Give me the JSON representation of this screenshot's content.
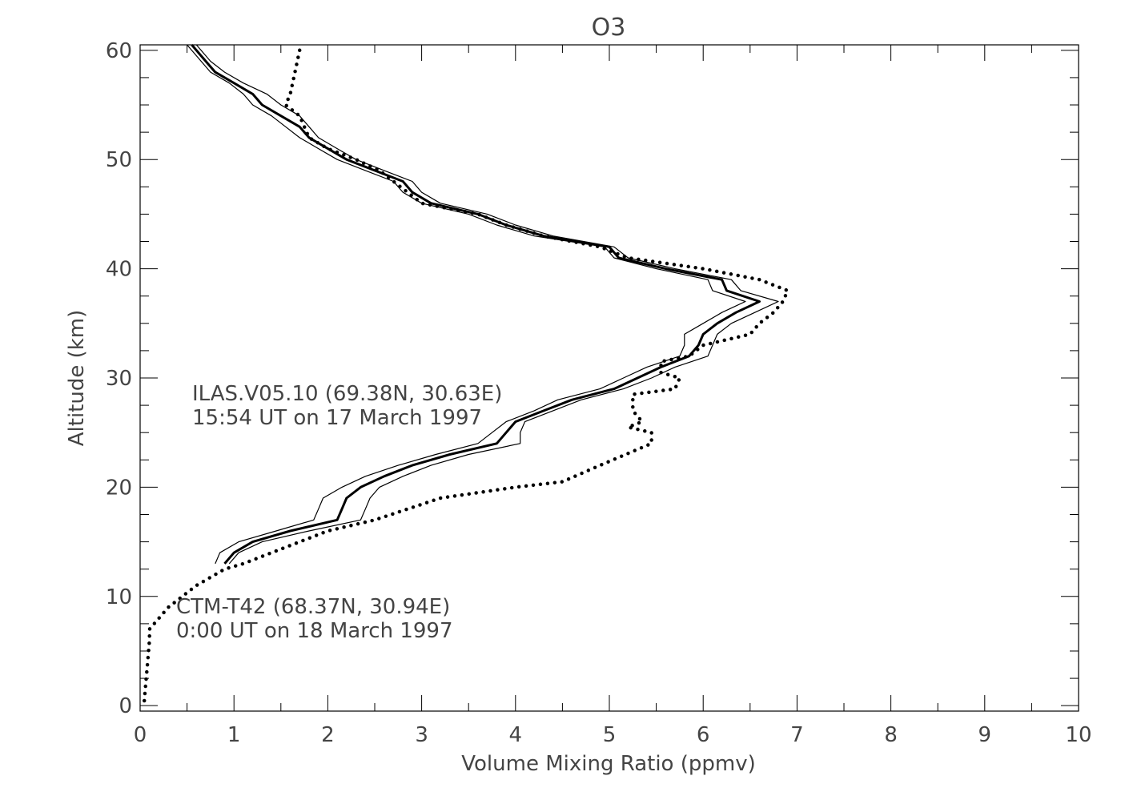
{
  "chart_data": {
    "type": "line",
    "title": "O3",
    "xlabel": "Volume Mixing Ratio (ppmv)",
    "ylabel": "Altitude (km)",
    "xlim": [
      0,
      10
    ],
    "ylim": [
      -0.5,
      60.5
    ],
    "xticks": [
      "0",
      "1",
      "2",
      "3",
      "4",
      "5",
      "6",
      "7",
      "8",
      "9",
      "10"
    ],
    "yticks": [
      "0",
      "10",
      "20",
      "30",
      "40",
      "50",
      "60"
    ],
    "grid": false,
    "annotations": [
      {
        "lines": [
          "ILAS.V05.10 (69.38N, 30.63E)",
          "15:54 UT on 17 March 1997"
        ]
      },
      {
        "lines": [
          "CTM-T42 (68.37N, 30.94E)",
          "0:00 UT on 18 March 1997"
        ]
      }
    ],
    "series": [
      {
        "style": "thick-solid",
        "color": "#000000",
        "points": [
          [
            0.55,
            60.5
          ],
          [
            0.7,
            59
          ],
          [
            0.8,
            58
          ],
          [
            1.0,
            57
          ],
          [
            1.2,
            56
          ],
          [
            1.3,
            55
          ],
          [
            1.5,
            54
          ],
          [
            1.7,
            53
          ],
          [
            1.8,
            52
          ],
          [
            2.0,
            51
          ],
          [
            2.2,
            50
          ],
          [
            2.5,
            49
          ],
          [
            2.8,
            48
          ],
          [
            2.9,
            47
          ],
          [
            3.1,
            46
          ],
          [
            3.6,
            45
          ],
          [
            3.9,
            44
          ],
          [
            4.3,
            43
          ],
          [
            5.0,
            42
          ],
          [
            5.1,
            41
          ],
          [
            5.6,
            40
          ],
          [
            6.2,
            39
          ],
          [
            6.25,
            38
          ],
          [
            6.6,
            37
          ],
          [
            6.35,
            36
          ],
          [
            6.15,
            35
          ],
          [
            6.0,
            34
          ],
          [
            5.95,
            33
          ],
          [
            5.85,
            32
          ],
          [
            5.55,
            31
          ],
          [
            5.3,
            30
          ],
          [
            5.05,
            29
          ],
          [
            4.6,
            28
          ],
          [
            4.3,
            27
          ],
          [
            4.0,
            26
          ],
          [
            3.9,
            25
          ],
          [
            3.8,
            24
          ],
          [
            3.3,
            23
          ],
          [
            2.9,
            22
          ],
          [
            2.6,
            21
          ],
          [
            2.35,
            20
          ],
          [
            2.2,
            19
          ],
          [
            2.15,
            18
          ],
          [
            2.1,
            17
          ],
          [
            1.6,
            16
          ],
          [
            1.2,
            15
          ],
          [
            1.0,
            14
          ],
          [
            0.9,
            13
          ]
        ]
      },
      {
        "style": "thin-solid",
        "color": "#000000",
        "points": [
          [
            0.6,
            60.5
          ],
          [
            0.75,
            59
          ],
          [
            0.9,
            58
          ],
          [
            1.1,
            57
          ],
          [
            1.35,
            56
          ],
          [
            1.5,
            55
          ],
          [
            1.7,
            54
          ],
          [
            1.8,
            53
          ],
          [
            1.9,
            52
          ],
          [
            2.1,
            51
          ],
          [
            2.3,
            50
          ],
          [
            2.6,
            49
          ],
          [
            2.9,
            48
          ],
          [
            3.0,
            47
          ],
          [
            3.2,
            46
          ],
          [
            3.7,
            45
          ],
          [
            4.0,
            44
          ],
          [
            4.4,
            43
          ],
          [
            5.05,
            42
          ],
          [
            5.2,
            41
          ],
          [
            5.7,
            40
          ],
          [
            6.3,
            39
          ],
          [
            6.4,
            38
          ],
          [
            6.8,
            37
          ],
          [
            6.55,
            36
          ],
          [
            6.3,
            35
          ],
          [
            6.15,
            34
          ],
          [
            6.1,
            33
          ],
          [
            6.05,
            32
          ],
          [
            5.7,
            31
          ],
          [
            5.45,
            30
          ],
          [
            5.15,
            29
          ],
          [
            4.7,
            28
          ],
          [
            4.4,
            27
          ],
          [
            4.1,
            26
          ],
          [
            4.05,
            25
          ],
          [
            4.05,
            24
          ],
          [
            3.5,
            23
          ],
          [
            3.1,
            22
          ],
          [
            2.8,
            21
          ],
          [
            2.55,
            20
          ],
          [
            2.45,
            19
          ],
          [
            2.4,
            18
          ],
          [
            2.35,
            17
          ],
          [
            1.8,
            16
          ],
          [
            1.3,
            15
          ],
          [
            1.05,
            14
          ],
          [
            0.95,
            13
          ]
        ]
      },
      {
        "style": "thin-solid",
        "color": "#000000",
        "points": [
          [
            0.5,
            60.5
          ],
          [
            0.65,
            59
          ],
          [
            0.75,
            58
          ],
          [
            0.95,
            57
          ],
          [
            1.1,
            56
          ],
          [
            1.2,
            55
          ],
          [
            1.4,
            54
          ],
          [
            1.55,
            53
          ],
          [
            1.7,
            52
          ],
          [
            1.9,
            51
          ],
          [
            2.1,
            50
          ],
          [
            2.4,
            49
          ],
          [
            2.7,
            48
          ],
          [
            2.8,
            47
          ],
          [
            3.0,
            46
          ],
          [
            3.5,
            45
          ],
          [
            3.8,
            44
          ],
          [
            4.2,
            43
          ],
          [
            4.95,
            42
          ],
          [
            5.05,
            41
          ],
          [
            5.5,
            40
          ],
          [
            6.05,
            39
          ],
          [
            6.1,
            38
          ],
          [
            6.45,
            37
          ],
          [
            6.2,
            36
          ],
          [
            6.0,
            35
          ],
          [
            5.8,
            34
          ],
          [
            5.8,
            33
          ],
          [
            5.75,
            32
          ],
          [
            5.4,
            31
          ],
          [
            5.15,
            30
          ],
          [
            4.9,
            29
          ],
          [
            4.45,
            28
          ],
          [
            4.2,
            27
          ],
          [
            3.9,
            26
          ],
          [
            3.75,
            25
          ],
          [
            3.6,
            24
          ],
          [
            3.15,
            23
          ],
          [
            2.75,
            22
          ],
          [
            2.4,
            21
          ],
          [
            2.15,
            20
          ],
          [
            1.95,
            19
          ],
          [
            1.9,
            18
          ],
          [
            1.85,
            17
          ],
          [
            1.45,
            16
          ],
          [
            1.05,
            15
          ],
          [
            0.85,
            14
          ],
          [
            0.8,
            13
          ]
        ]
      },
      {
        "style": "dotted",
        "color": "#000000",
        "points": [
          [
            1.7,
            60
          ],
          [
            1.65,
            58
          ],
          [
            1.6,
            56
          ],
          [
            1.55,
            55
          ],
          [
            1.7,
            54
          ],
          [
            1.75,
            53
          ],
          [
            1.8,
            52
          ],
          [
            2.0,
            51
          ],
          [
            2.3,
            50
          ],
          [
            2.55,
            49
          ],
          [
            2.7,
            48
          ],
          [
            2.85,
            47
          ],
          [
            3.0,
            46
          ],
          [
            3.6,
            45
          ],
          [
            3.9,
            44
          ],
          [
            4.3,
            43
          ],
          [
            4.9,
            42
          ],
          [
            5.2,
            41
          ],
          [
            6.0,
            40
          ],
          [
            6.6,
            39
          ],
          [
            6.9,
            38
          ],
          [
            6.85,
            37
          ],
          [
            6.75,
            36
          ],
          [
            6.6,
            35
          ],
          [
            6.5,
            34
          ],
          [
            6.0,
            33
          ],
          [
            5.85,
            32
          ],
          [
            5.55,
            31.5
          ],
          [
            5.55,
            30.5
          ],
          [
            5.75,
            30
          ],
          [
            5.7,
            29
          ],
          [
            5.25,
            28.5
          ],
          [
            5.25,
            27
          ],
          [
            5.35,
            26
          ],
          [
            5.2,
            25.5
          ],
          [
            5.45,
            25
          ],
          [
            5.45,
            24
          ],
          [
            4.9,
            22
          ],
          [
            4.5,
            20.5
          ],
          [
            4.0,
            20
          ],
          [
            3.2,
            19
          ],
          [
            2.5,
            17
          ],
          [
            2.0,
            16
          ],
          [
            1.7,
            15
          ],
          [
            1.1,
            13
          ],
          [
            0.9,
            12.5
          ],
          [
            0.6,
            11
          ],
          [
            0.3,
            9
          ],
          [
            0.1,
            7
          ],
          [
            0.1,
            6
          ],
          [
            0.08,
            4
          ],
          [
            0.06,
            2
          ],
          [
            0.04,
            0
          ]
        ]
      }
    ]
  }
}
